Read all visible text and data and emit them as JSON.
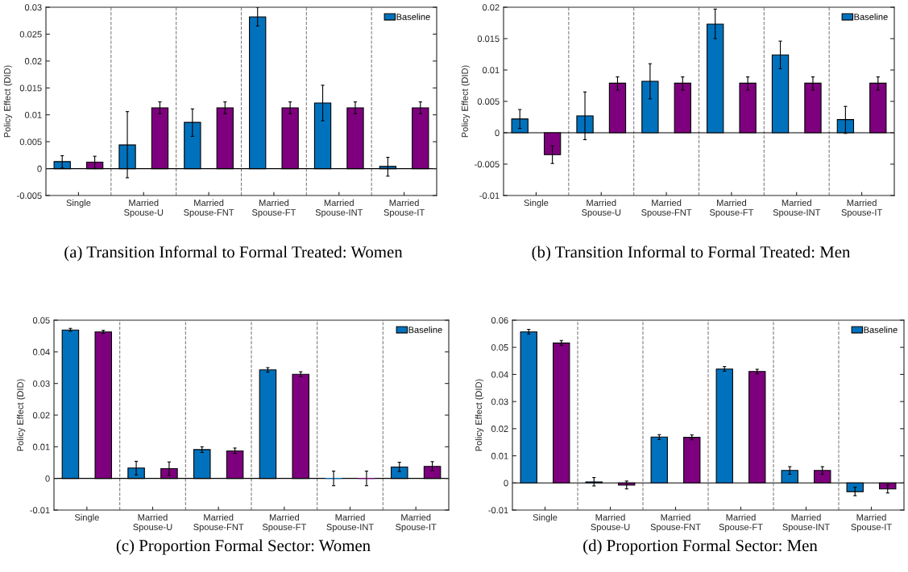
{
  "chart_data": [
    {
      "type": "bar",
      "title": "(a) Transition Informal to Formal Treated: Women",
      "ylabel": "Policy Effect (DID)",
      "categories": [
        "Single",
        "Married\nSpouse-U",
        "Married\nSpouse-FNT",
        "Married\nSpouse-FT",
        "Married\nSpouse-INT",
        "Married\nSpouse-IT"
      ],
      "ylim": [
        -0.005,
        0.03
      ],
      "yticks": [
        -0.005,
        0,
        0.005,
        0.01,
        0.015,
        0.02,
        0.025,
        0.03
      ],
      "legend": "top right",
      "ref_lines": [
        {
          "axis": "y",
          "value": 0,
          "color": "#000000",
          "line_style": "solid"
        }
      ],
      "series": [
        {
          "name": "Baseline",
          "color": "#0072bd",
          "values": [
            0.0013,
            0.0044,
            0.0086,
            0.0282,
            0.0122,
            0.0004
          ],
          "errors": [
            [
              0.0001,
              0.0024
            ],
            [
              -0.0017,
              0.0106
            ],
            [
              0.006,
              0.0111
            ],
            [
              0.0265,
              0.03
            ],
            [
              0.0089,
              0.0155
            ],
            [
              -0.0014,
              0.0021
            ]
          ]
        },
        {
          "color": "#7e007e",
          "values": [
            0.0012,
            0.0113,
            0.0113,
            0.0113,
            0.0113,
            0.0113
          ],
          "errors": [
            [
              0.0,
              0.0023
            ],
            [
              0.0102,
              0.0124
            ],
            [
              0.0102,
              0.0124
            ],
            [
              0.0102,
              0.0124
            ],
            [
              0.0102,
              0.0124
            ],
            [
              0.0102,
              0.0124
            ]
          ]
        }
      ]
    },
    {
      "type": "bar",
      "title": "(b) Transition Informal to Formal Treated: Men",
      "ylabel": "Policy Effect (DID)",
      "categories": [
        "Single",
        "Married\nSpouse-U",
        "Married\nSpouse-FNT",
        "Married\nSpouse-FT",
        "Married\nSpouse-INT",
        "Married\nSpouse-IT"
      ],
      "ylim": [
        -0.01,
        0.02
      ],
      "yticks": [
        -0.01,
        -0.005,
        0,
        0.005,
        0.01,
        0.015,
        0.02
      ],
      "legend": "top right",
      "ref_lines": [
        {
          "axis": "y",
          "value": 0,
          "color": "#000000",
          "line_style": "solid"
        }
      ],
      "series": [
        {
          "name": "Baseline",
          "color": "#0072bd",
          "values": [
            0.0022,
            0.0027,
            0.0082,
            0.0173,
            0.0124,
            0.0021
          ],
          "errors": [
            [
              0.0007,
              0.0037
            ],
            [
              -0.0011,
              0.0065
            ],
            [
              0.0054,
              0.011
            ],
            [
              0.015,
              0.0197
            ],
            [
              0.0102,
              0.0146
            ],
            [
              -0.0001,
              0.0042
            ]
          ]
        },
        {
          "color": "#7e007e",
          "values": [
            -0.0035,
            0.0079,
            0.0079,
            0.0079,
            0.0079,
            0.0079
          ],
          "errors": [
            [
              -0.0049,
              -0.0021
            ],
            [
              0.0068,
              0.0089
            ],
            [
              0.0068,
              0.0089
            ],
            [
              0.0068,
              0.0089
            ],
            [
              0.0068,
              0.0089
            ],
            [
              0.0068,
              0.0089
            ]
          ]
        }
      ]
    },
    {
      "type": "bar",
      "title": "(c) Proportion Formal Sector: Women",
      "ylabel": "Policy Effect (DID)",
      "categories": [
        "Single",
        "Married\nSpouse-U",
        "Married\nSpouse-FNT",
        "Married\nSpouse-FT",
        "Married\nSpouse-INT",
        "Married\nSpouse-IT"
      ],
      "ylim": [
        -0.01,
        0.05
      ],
      "yticks": [
        -0.01,
        0,
        0.01,
        0.02,
        0.03,
        0.04,
        0.05
      ],
      "legend": "top right",
      "ref_lines": [
        {
          "axis": "y",
          "value": 0,
          "color": "#000000",
          "line_style": "solid"
        }
      ],
      "series": [
        {
          "name": "Baseline",
          "color": "#0072bd",
          "values": [
            0.0469,
            0.0033,
            0.0091,
            0.0343,
            0,
            0.0036
          ],
          "errors": [
            [
              0.0465,
              0.0474
            ],
            [
              0.0011,
              0.0054
            ],
            [
              0.0082,
              0.01
            ],
            [
              0.0336,
              0.035
            ],
            [
              -0.0023,
              0.0023
            ],
            [
              0.0022,
              0.0051
            ]
          ]
        },
        {
          "color": "#7e007e",
          "values": [
            0.0463,
            0.0031,
            0.0087,
            0.0329,
            0,
            0.0038
          ],
          "errors": [
            [
              0.0458,
              0.0468
            ],
            [
              0.001,
              0.0052
            ],
            [
              0.0079,
              0.0096
            ],
            [
              0.0322,
              0.0337
            ],
            [
              -0.0023,
              0.0023
            ],
            [
              0.0025,
              0.0053
            ]
          ]
        }
      ]
    },
    {
      "type": "bar",
      "title": "(d) Proportion Formal Sector: Men",
      "ylabel": "Policy Effect (DID)",
      "categories": [
        "Single",
        "Married\nSpouse-U",
        "Married\nSpouse-FNT",
        "Married\nSpouse-FT",
        "Married\nSpouse-INT",
        "Married\nSpouse-IT"
      ],
      "ylim": [
        -0.01,
        0.06
      ],
      "yticks": [
        -0.01,
        0,
        0.01,
        0.02,
        0.03,
        0.04,
        0.05,
        0.06
      ],
      "legend": "top right",
      "ref_lines": [
        {
          "axis": "y",
          "value": 0,
          "color": "#000000",
          "line_style": "solid"
        }
      ],
      "series": [
        {
          "name": "Baseline",
          "color": "#0072bd",
          "values": [
            0.0557,
            0.0004,
            0.0169,
            0.042,
            0.0046,
            -0.0032
          ],
          "errors": [
            [
              0.0549,
              0.0566
            ],
            [
              -0.0011,
              0.002
            ],
            [
              0.016,
              0.0178
            ],
            [
              0.0412,
              0.0429
            ],
            [
              0.0032,
              0.006
            ],
            [
              -0.0047,
              -0.0016
            ]
          ]
        },
        {
          "color": "#7e007e",
          "values": [
            0.0516,
            -0.0008,
            0.0168,
            0.0411,
            0.0046,
            -0.0022
          ],
          "errors": [
            [
              0.0507,
              0.0525
            ],
            [
              -0.0022,
              0.0007
            ],
            [
              0.0159,
              0.0177
            ],
            [
              0.0402,
              0.0419
            ],
            [
              0.0032,
              0.006
            ],
            [
              -0.0037,
              -0.0007
            ]
          ]
        }
      ]
    }
  ]
}
